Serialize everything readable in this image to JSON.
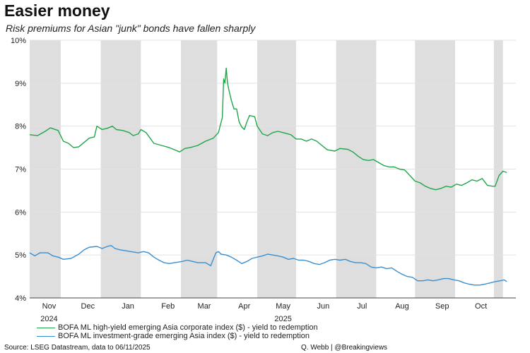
{
  "header": {
    "title": "Easier money",
    "subtitle": "Risk premiums for Asian \"junk\" bonds have fallen sharply"
  },
  "footer": {
    "source": "Source: LSEG Datastream, data to 06/11/2025",
    "credit": "Q. Webb | @Breakingviews"
  },
  "colors": {
    "high_yield": "#1fa64a",
    "investment_grade": "#3a8fd0",
    "shade": "#dedede",
    "grid": "#e2e2e2"
  },
  "chart_data": {
    "type": "line",
    "title": "Easier money",
    "subtitle": "Risk premiums for Asian \"junk\" bonds have fallen sharply",
    "xlabel": "",
    "ylabel": "",
    "x_range_days": [
      0,
      376
    ],
    "ylim": [
      4,
      10
    ],
    "y_ticks": [
      {
        "value": 10,
        "label": "10%"
      },
      {
        "value": 9,
        "label": "9%"
      },
      {
        "value": 8,
        "label": "8%"
      },
      {
        "value": 7,
        "label": "7%"
      },
      {
        "value": 6,
        "label": "6%"
      },
      {
        "value": 5,
        "label": "5%"
      },
      {
        "value": 4,
        "label": "4%"
      }
    ],
    "x_ticks": [
      {
        "day": 15,
        "label": "Nov"
      },
      {
        "day": 45,
        "label": "Dec"
      },
      {
        "day": 76,
        "label": "Jan"
      },
      {
        "day": 107,
        "label": "Feb"
      },
      {
        "day": 135,
        "label": "Mar"
      },
      {
        "day": 166,
        "label": "Apr"
      },
      {
        "day": 196,
        "label": "May"
      },
      {
        "day": 227,
        "label": "Jun"
      },
      {
        "day": 257,
        "label": "Jul"
      },
      {
        "day": 288,
        "label": "Aug"
      },
      {
        "day": 319,
        "label": "Sep"
      },
      {
        "day": 349,
        "label": "Oct"
      }
    ],
    "year_labels": [
      {
        "day": 15,
        "label": "2024"
      },
      {
        "day": 196,
        "label": "2025"
      }
    ],
    "shaded_months": [
      [
        0,
        24
      ],
      [
        55,
        86
      ],
      [
        117,
        145
      ],
      [
        176,
        206
      ],
      [
        237,
        268
      ],
      [
        298,
        329
      ],
      [
        359,
        366
      ]
    ],
    "series": [
      {
        "name": "BOFA ML high-yield emerging Asia corporate index  ($) - yield to redemption",
        "color_key": "high_yield",
        "points": [
          [
            0,
            7.8
          ],
          [
            6,
            7.78
          ],
          [
            12,
            7.88
          ],
          [
            16,
            7.96
          ],
          [
            22,
            7.9
          ],
          [
            26,
            7.65
          ],
          [
            30,
            7.6
          ],
          [
            34,
            7.5
          ],
          [
            38,
            7.52
          ],
          [
            42,
            7.62
          ],
          [
            46,
            7.72
          ],
          [
            50,
            7.75
          ],
          [
            52,
            8.0
          ],
          [
            56,
            7.92
          ],
          [
            60,
            7.95
          ],
          [
            64,
            8.0
          ],
          [
            67,
            7.92
          ],
          [
            72,
            7.9
          ],
          [
            77,
            7.85
          ],
          [
            80,
            7.78
          ],
          [
            84,
            7.82
          ],
          [
            86,
            7.92
          ],
          [
            90,
            7.85
          ],
          [
            96,
            7.6
          ],
          [
            102,
            7.55
          ],
          [
            108,
            7.5
          ],
          [
            112,
            7.45
          ],
          [
            116,
            7.4
          ],
          [
            120,
            7.48
          ],
          [
            124,
            7.5
          ],
          [
            130,
            7.55
          ],
          [
            136,
            7.65
          ],
          [
            142,
            7.72
          ],
          [
            146,
            7.85
          ],
          [
            149,
            8.2
          ],
          [
            150,
            9.1
          ],
          [
            151,
            9.0
          ],
          [
            152,
            9.35
          ],
          [
            153,
            9.0
          ],
          [
            154,
            8.85
          ],
          [
            156,
            8.6
          ],
          [
            158,
            8.4
          ],
          [
            160,
            8.4
          ],
          [
            162,
            8.1
          ],
          [
            164,
            7.98
          ],
          [
            166,
            7.92
          ],
          [
            168,
            8.1
          ],
          [
            170,
            8.25
          ],
          [
            174,
            8.22
          ],
          [
            176,
            8.0
          ],
          [
            180,
            7.82
          ],
          [
            184,
            7.78
          ],
          [
            188,
            7.85
          ],
          [
            192,
            7.88
          ],
          [
            196,
            7.85
          ],
          [
            202,
            7.8
          ],
          [
            206,
            7.7
          ],
          [
            210,
            7.7
          ],
          [
            214,
            7.65
          ],
          [
            218,
            7.7
          ],
          [
            222,
            7.65
          ],
          [
            226,
            7.55
          ],
          [
            230,
            7.45
          ],
          [
            236,
            7.42
          ],
          [
            240,
            7.48
          ],
          [
            246,
            7.46
          ],
          [
            250,
            7.4
          ],
          [
            254,
            7.3
          ],
          [
            258,
            7.22
          ],
          [
            262,
            7.2
          ],
          [
            266,
            7.22
          ],
          [
            270,
            7.15
          ],
          [
            274,
            7.08
          ],
          [
            278,
            7.05
          ],
          [
            282,
            7.05
          ],
          [
            286,
            7.0
          ],
          [
            290,
            6.98
          ],
          [
            294,
            6.85
          ],
          [
            298,
            6.72
          ],
          [
            302,
            6.68
          ],
          [
            306,
            6.6
          ],
          [
            310,
            6.55
          ],
          [
            314,
            6.52
          ],
          [
            318,
            6.55
          ],
          [
            322,
            6.6
          ],
          [
            326,
            6.58
          ],
          [
            330,
            6.65
          ],
          [
            334,
            6.62
          ],
          [
            338,
            6.68
          ],
          [
            342,
            6.75
          ],
          [
            346,
            6.72
          ],
          [
            350,
            6.78
          ],
          [
            354,
            6.62
          ],
          [
            358,
            6.6
          ],
          [
            360,
            6.6
          ],
          [
            363,
            6.85
          ],
          [
            366,
            6.95
          ],
          [
            369,
            6.92
          ]
        ]
      },
      {
        "name": "BOFA ML investment-grade emerging Asia index ($) - yield to redemption",
        "color_key": "investment_grade",
        "points": [
          [
            0,
            5.05
          ],
          [
            4,
            4.98
          ],
          [
            8,
            5.05
          ],
          [
            14,
            5.05
          ],
          [
            18,
            4.98
          ],
          [
            22,
            4.95
          ],
          [
            26,
            4.9
          ],
          [
            32,
            4.92
          ],
          [
            38,
            5.02
          ],
          [
            42,
            5.12
          ],
          [
            46,
            5.18
          ],
          [
            52,
            5.2
          ],
          [
            56,
            5.15
          ],
          [
            60,
            5.2
          ],
          [
            63,
            5.22
          ],
          [
            66,
            5.15
          ],
          [
            70,
            5.12
          ],
          [
            74,
            5.1
          ],
          [
            78,
            5.08
          ],
          [
            84,
            5.05
          ],
          [
            88,
            5.08
          ],
          [
            92,
            5.05
          ],
          [
            96,
            4.95
          ],
          [
            100,
            4.88
          ],
          [
            104,
            4.82
          ],
          [
            108,
            4.8
          ],
          [
            112,
            4.82
          ],
          [
            118,
            4.85
          ],
          [
            122,
            4.88
          ],
          [
            126,
            4.85
          ],
          [
            130,
            4.82
          ],
          [
            136,
            4.82
          ],
          [
            140,
            4.75
          ],
          [
            142,
            4.9
          ],
          [
            144,
            5.05
          ],
          [
            146,
            5.08
          ],
          [
            148,
            5.02
          ],
          [
            152,
            5.0
          ],
          [
            156,
            4.95
          ],
          [
            160,
            4.88
          ],
          [
            164,
            4.8
          ],
          [
            168,
            4.85
          ],
          [
            172,
            4.92
          ],
          [
            176,
            4.95
          ],
          [
            180,
            4.98
          ],
          [
            184,
            5.02
          ],
          [
            188,
            5.0
          ],
          [
            192,
            4.98
          ],
          [
            196,
            4.95
          ],
          [
            200,
            4.9
          ],
          [
            204,
            4.92
          ],
          [
            208,
            4.88
          ],
          [
            212,
            4.88
          ],
          [
            216,
            4.85
          ],
          [
            220,
            4.8
          ],
          [
            224,
            4.78
          ],
          [
            228,
            4.82
          ],
          [
            232,
            4.88
          ],
          [
            236,
            4.9
          ],
          [
            240,
            4.88
          ],
          [
            244,
            4.9
          ],
          [
            248,
            4.85
          ],
          [
            252,
            4.82
          ],
          [
            256,
            4.82
          ],
          [
            260,
            4.8
          ],
          [
            264,
            4.72
          ],
          [
            268,
            4.7
          ],
          [
            272,
            4.72
          ],
          [
            276,
            4.68
          ],
          [
            280,
            4.7
          ],
          [
            284,
            4.62
          ],
          [
            288,
            4.55
          ],
          [
            292,
            4.5
          ],
          [
            296,
            4.48
          ],
          [
            300,
            4.4
          ],
          [
            304,
            4.4
          ],
          [
            308,
            4.42
          ],
          [
            312,
            4.4
          ],
          [
            316,
            4.42
          ],
          [
            320,
            4.45
          ],
          [
            324,
            4.45
          ],
          [
            328,
            4.42
          ],
          [
            332,
            4.4
          ],
          [
            336,
            4.35
          ],
          [
            340,
            4.32
          ],
          [
            344,
            4.3
          ],
          [
            348,
            4.3
          ],
          [
            352,
            4.32
          ],
          [
            356,
            4.35
          ],
          [
            360,
            4.38
          ],
          [
            364,
            4.4
          ],
          [
            367,
            4.42
          ],
          [
            369,
            4.38
          ]
        ]
      }
    ],
    "legend_position": "bottom-left"
  }
}
